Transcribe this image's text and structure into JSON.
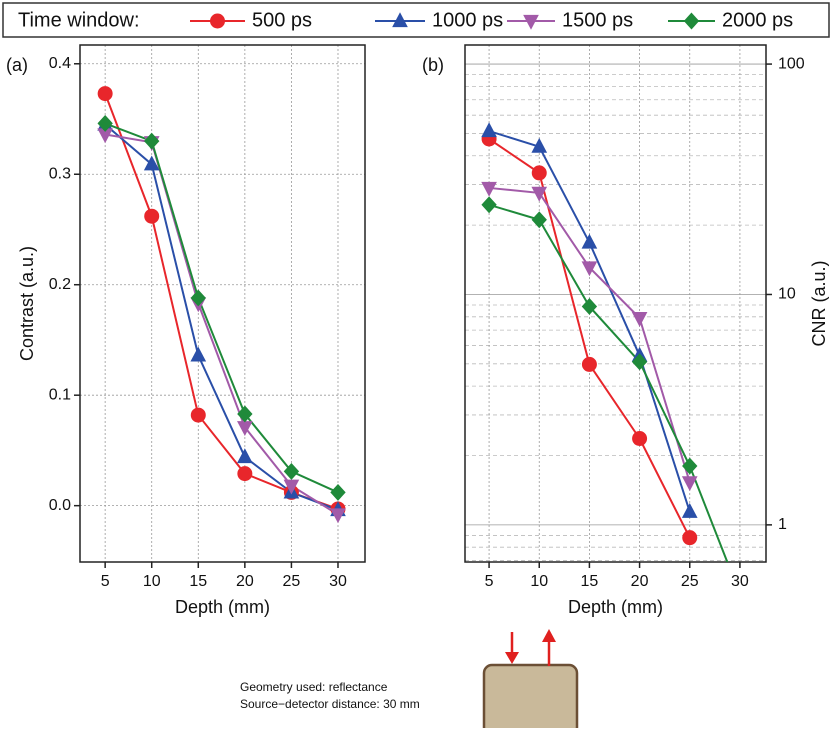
{
  "chart_data": [
    {
      "type": "line",
      "panel_label": "(a)",
      "legend_title": "Time window:",
      "x": [
        5,
        10,
        15,
        20,
        25,
        30
      ],
      "xlim": [
        2.3,
        32.9
      ],
      "xticks": [
        5,
        10,
        15,
        20,
        25,
        30
      ],
      "ylim": [
        -0.051,
        0.417
      ],
      "yticks": [
        {
          "value": 0,
          "label": "0.0"
        },
        0.1,
        0.2,
        0.3,
        0.4
      ],
      "xlabel": "Depth (mm)",
      "ylabel": "Contrast (a.u.)",
      "y_axis_side": "left",
      "grid": true,
      "series": [
        {
          "name": "500 ps",
          "color": "#e8262b",
          "marker": "circle",
          "values": [
            0.373,
            0.262,
            0.082,
            0.029,
            0.012,
            -0.003
          ]
        },
        {
          "name": "1000 ps",
          "color": "#2a4fa8",
          "marker": "triangle-up",
          "values": [
            0.345,
            0.309,
            0.136,
            0.044,
            0.012,
            -0.004
          ]
        },
        {
          "name": "1500 ps",
          "color": "#a25aa8",
          "marker": "triangle-down",
          "values": [
            0.336,
            0.329,
            0.183,
            0.071,
            0.018,
            -0.008
          ]
        },
        {
          "name": "2000 ps",
          "color": "#1f8a3a",
          "marker": "diamond",
          "values": [
            0.346,
            0.33,
            0.188,
            0.083,
            0.031,
            0.012
          ]
        }
      ]
    },
    {
      "type": "line",
      "panel_label": "(b)",
      "x": [
        5,
        10,
        15,
        20,
        25,
        30
      ],
      "xlim": [
        2.6,
        32.6
      ],
      "xticks": [
        5,
        10,
        15,
        20,
        25,
        30
      ],
      "ylim": [
        0.69,
        121
      ],
      "yticks": [
        1,
        10,
        100
      ],
      "log_y": true,
      "minor_yticks": [
        0.7,
        0.8,
        0.9,
        2,
        3,
        4,
        5,
        6,
        7,
        8,
        9,
        20,
        30,
        40,
        50,
        60,
        70,
        80,
        90
      ],
      "xlabel": "Depth (mm)",
      "ylabel": "CNR (a.u.)",
      "y_axis_side": "right",
      "grid": true,
      "series": [
        {
          "color": "#e8262b",
          "marker": "circle",
          "values": [
            47.3,
            33.7,
            4.97,
            2.37,
            0.88,
            null
          ]
        },
        {
          "color": "#2a4fa8",
          "marker": "triangle-up",
          "values": [
            51.2,
            43.8,
            16.8,
            5.43,
            1.14,
            null
          ]
        },
        {
          "color": "#a25aa8",
          "marker": "triangle-down",
          "values": [
            29.0,
            27.6,
            13.1,
            7.9,
            1.53,
            null
          ]
        },
        {
          "color": "#1f8a3a",
          "marker": "diamond",
          "values": [
            24.5,
            21.1,
            8.87,
            5.1,
            1.8,
            0.5
          ]
        }
      ]
    }
  ],
  "notes": [
    "Geometry used: reflectance",
    "Source−detector distance: 30 mm"
  ]
}
